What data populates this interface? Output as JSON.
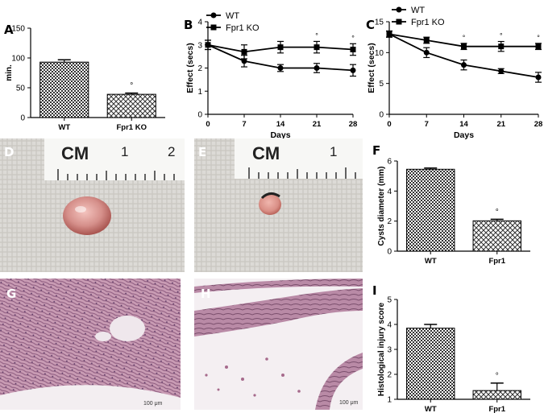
{
  "panels": {
    "A": "A",
    "B": "B",
    "C": "C",
    "D": "D",
    "E": "E",
    "F": "F",
    "G": "G",
    "H": "H",
    "I": "I"
  },
  "photo_D": {
    "ruler_unit": "CM",
    "ruler_marks": [
      "1",
      "2"
    ]
  },
  "photo_E": {
    "ruler_unit": "CM",
    "ruler_marks": [
      "1"
    ]
  },
  "photo_G": {
    "scale_bar": "100 μm"
  },
  "photo_H": {
    "scale_bar": "100 μm"
  },
  "chart_data": [
    {
      "id": "A",
      "type": "bar",
      "categories": [
        "WT",
        "Fpr1 KO"
      ],
      "values": [
        93,
        39
      ],
      "errors": [
        4,
        2
      ],
      "patterns": [
        "checker",
        "diamond"
      ],
      "significance": [
        false,
        true
      ],
      "sig_marker": "°",
      "ylabel": "min.",
      "ylim": [
        0,
        150
      ],
      "yticks": [
        "0",
        "50",
        "100",
        "150"
      ]
    },
    {
      "id": "B",
      "type": "line",
      "x": [
        0,
        7,
        14,
        21,
        28
      ],
      "xticks": [
        "0",
        "7",
        "14",
        "21",
        "28"
      ],
      "xlabel": "Days",
      "ylabel": "Effect (secs)",
      "ylim": [
        0,
        4
      ],
      "yticks": [
        "0",
        "1",
        "2",
        "3",
        "4"
      ],
      "legend": "top-left",
      "sig_marker": "°",
      "series": [
        {
          "name": "WT",
          "marker": "circle",
          "values": [
            3.0,
            2.3,
            2.0,
            2.0,
            1.9
          ],
          "errors": [
            0.2,
            0.25,
            0.15,
            0.2,
            0.25
          ]
        },
        {
          "name": "Fpr1 KO",
          "marker": "square",
          "values": [
            3.0,
            2.7,
            2.9,
            2.9,
            2.8
          ],
          "errors": [
            0.2,
            0.3,
            0.25,
            0.25,
            0.25
          ],
          "significance": [
            false,
            false,
            false,
            true,
            true
          ]
        }
      ]
    },
    {
      "id": "C",
      "type": "line",
      "x": [
        0,
        7,
        14,
        21,
        28
      ],
      "xticks": [
        "0",
        "7",
        "14",
        "21",
        "28"
      ],
      "xlabel": "Days",
      "ylabel": "Effect (secs)",
      "ylim": [
        0,
        15
      ],
      "yticks": [
        "0",
        "5",
        "10",
        "15"
      ],
      "legend": "top-left",
      "sig_marker": "°",
      "series": [
        {
          "name": "WT",
          "marker": "circle",
          "values": [
            13,
            10,
            8,
            7,
            6
          ],
          "errors": [
            0.5,
            0.8,
            0.8,
            0.4,
            0.8
          ]
        },
        {
          "name": "Fpr1 KO",
          "marker": "square",
          "values": [
            13,
            12,
            11,
            11,
            11
          ],
          "errors": [
            0.5,
            0.5,
            0.5,
            0.8,
            0.5
          ],
          "significance": [
            false,
            false,
            true,
            true,
            true
          ]
        }
      ]
    },
    {
      "id": "F",
      "type": "bar",
      "categories": [
        "WT",
        "Fpr1"
      ],
      "values": [
        5.45,
        2.02
      ],
      "errors": [
        0.08,
        0.1
      ],
      "patterns": [
        "checker",
        "diamond"
      ],
      "significance": [
        false,
        true
      ],
      "sig_marker": "°",
      "ylabel": "Cysts diameter (mm)",
      "ylim": [
        0,
        6
      ],
      "yticks": [
        "0",
        "2",
        "4",
        "6"
      ]
    },
    {
      "id": "I",
      "type": "bar",
      "categories": [
        "WT",
        "Fpr1"
      ],
      "values": [
        3.85,
        1.35
      ],
      "errors": [
        0.15,
        0.3
      ],
      "patterns": [
        "checker",
        "diamond"
      ],
      "significance": [
        false,
        true
      ],
      "sig_marker": "°",
      "ylabel": "Histological injury score",
      "ylim": [
        1,
        5
      ],
      "yticks": [
        "1",
        "2",
        "3",
        "4",
        "5"
      ]
    }
  ]
}
